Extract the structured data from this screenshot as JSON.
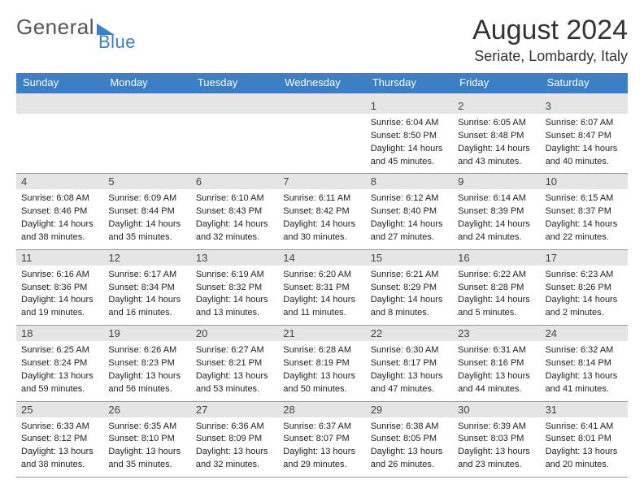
{
  "brand": {
    "general": "General",
    "blue": "Blue"
  },
  "title": "August 2024",
  "location": "Seriate, Lombardy, Italy",
  "header_bg": "#3b7fc4",
  "stripe_bg": "#e5e5e5",
  "dow": [
    "Sunday",
    "Monday",
    "Tuesday",
    "Wednesday",
    "Thursday",
    "Friday",
    "Saturday"
  ],
  "leading_blanks": 4,
  "days": [
    {
      "n": "1",
      "rise": "Sunrise: 6:04 AM",
      "set": "Sunset: 8:50 PM",
      "dl1": "Daylight: 14 hours",
      "dl2": "and 45 minutes."
    },
    {
      "n": "2",
      "rise": "Sunrise: 6:05 AM",
      "set": "Sunset: 8:48 PM",
      "dl1": "Daylight: 14 hours",
      "dl2": "and 43 minutes."
    },
    {
      "n": "3",
      "rise": "Sunrise: 6:07 AM",
      "set": "Sunset: 8:47 PM",
      "dl1": "Daylight: 14 hours",
      "dl2": "and 40 minutes."
    },
    {
      "n": "4",
      "rise": "Sunrise: 6:08 AM",
      "set": "Sunset: 8:46 PM",
      "dl1": "Daylight: 14 hours",
      "dl2": "and 38 minutes."
    },
    {
      "n": "5",
      "rise": "Sunrise: 6:09 AM",
      "set": "Sunset: 8:44 PM",
      "dl1": "Daylight: 14 hours",
      "dl2": "and 35 minutes."
    },
    {
      "n": "6",
      "rise": "Sunrise: 6:10 AM",
      "set": "Sunset: 8:43 PM",
      "dl1": "Daylight: 14 hours",
      "dl2": "and 32 minutes."
    },
    {
      "n": "7",
      "rise": "Sunrise: 6:11 AM",
      "set": "Sunset: 8:42 PM",
      "dl1": "Daylight: 14 hours",
      "dl2": "and 30 minutes."
    },
    {
      "n": "8",
      "rise": "Sunrise: 6:12 AM",
      "set": "Sunset: 8:40 PM",
      "dl1": "Daylight: 14 hours",
      "dl2": "and 27 minutes."
    },
    {
      "n": "9",
      "rise": "Sunrise: 6:14 AM",
      "set": "Sunset: 8:39 PM",
      "dl1": "Daylight: 14 hours",
      "dl2": "and 24 minutes."
    },
    {
      "n": "10",
      "rise": "Sunrise: 6:15 AM",
      "set": "Sunset: 8:37 PM",
      "dl1": "Daylight: 14 hours",
      "dl2": "and 22 minutes."
    },
    {
      "n": "11",
      "rise": "Sunrise: 6:16 AM",
      "set": "Sunset: 8:36 PM",
      "dl1": "Daylight: 14 hours",
      "dl2": "and 19 minutes."
    },
    {
      "n": "12",
      "rise": "Sunrise: 6:17 AM",
      "set": "Sunset: 8:34 PM",
      "dl1": "Daylight: 14 hours",
      "dl2": "and 16 minutes."
    },
    {
      "n": "13",
      "rise": "Sunrise: 6:19 AM",
      "set": "Sunset: 8:32 PM",
      "dl1": "Daylight: 14 hours",
      "dl2": "and 13 minutes."
    },
    {
      "n": "14",
      "rise": "Sunrise: 6:20 AM",
      "set": "Sunset: 8:31 PM",
      "dl1": "Daylight: 14 hours",
      "dl2": "and 11 minutes."
    },
    {
      "n": "15",
      "rise": "Sunrise: 6:21 AM",
      "set": "Sunset: 8:29 PM",
      "dl1": "Daylight: 14 hours",
      "dl2": "and 8 minutes."
    },
    {
      "n": "16",
      "rise": "Sunrise: 6:22 AM",
      "set": "Sunset: 8:28 PM",
      "dl1": "Daylight: 14 hours",
      "dl2": "and 5 minutes."
    },
    {
      "n": "17",
      "rise": "Sunrise: 6:23 AM",
      "set": "Sunset: 8:26 PM",
      "dl1": "Daylight: 14 hours",
      "dl2": "and 2 minutes."
    },
    {
      "n": "18",
      "rise": "Sunrise: 6:25 AM",
      "set": "Sunset: 8:24 PM",
      "dl1": "Daylight: 13 hours",
      "dl2": "and 59 minutes."
    },
    {
      "n": "19",
      "rise": "Sunrise: 6:26 AM",
      "set": "Sunset: 8:23 PM",
      "dl1": "Daylight: 13 hours",
      "dl2": "and 56 minutes."
    },
    {
      "n": "20",
      "rise": "Sunrise: 6:27 AM",
      "set": "Sunset: 8:21 PM",
      "dl1": "Daylight: 13 hours",
      "dl2": "and 53 minutes."
    },
    {
      "n": "21",
      "rise": "Sunrise: 6:28 AM",
      "set": "Sunset: 8:19 PM",
      "dl1": "Daylight: 13 hours",
      "dl2": "and 50 minutes."
    },
    {
      "n": "22",
      "rise": "Sunrise: 6:30 AM",
      "set": "Sunset: 8:17 PM",
      "dl1": "Daylight: 13 hours",
      "dl2": "and 47 minutes."
    },
    {
      "n": "23",
      "rise": "Sunrise: 6:31 AM",
      "set": "Sunset: 8:16 PM",
      "dl1": "Daylight: 13 hours",
      "dl2": "and 44 minutes."
    },
    {
      "n": "24",
      "rise": "Sunrise: 6:32 AM",
      "set": "Sunset: 8:14 PM",
      "dl1": "Daylight: 13 hours",
      "dl2": "and 41 minutes."
    },
    {
      "n": "25",
      "rise": "Sunrise: 6:33 AM",
      "set": "Sunset: 8:12 PM",
      "dl1": "Daylight: 13 hours",
      "dl2": "and 38 minutes."
    },
    {
      "n": "26",
      "rise": "Sunrise: 6:35 AM",
      "set": "Sunset: 8:10 PM",
      "dl1": "Daylight: 13 hours",
      "dl2": "and 35 minutes."
    },
    {
      "n": "27",
      "rise": "Sunrise: 6:36 AM",
      "set": "Sunset: 8:09 PM",
      "dl1": "Daylight: 13 hours",
      "dl2": "and 32 minutes."
    },
    {
      "n": "28",
      "rise": "Sunrise: 6:37 AM",
      "set": "Sunset: 8:07 PM",
      "dl1": "Daylight: 13 hours",
      "dl2": "and 29 minutes."
    },
    {
      "n": "29",
      "rise": "Sunrise: 6:38 AM",
      "set": "Sunset: 8:05 PM",
      "dl1": "Daylight: 13 hours",
      "dl2": "and 26 minutes."
    },
    {
      "n": "30",
      "rise": "Sunrise: 6:39 AM",
      "set": "Sunset: 8:03 PM",
      "dl1": "Daylight: 13 hours",
      "dl2": "and 23 minutes."
    },
    {
      "n": "31",
      "rise": "Sunrise: 6:41 AM",
      "set": "Sunset: 8:01 PM",
      "dl1": "Daylight: 13 hours",
      "dl2": "and 20 minutes."
    }
  ]
}
